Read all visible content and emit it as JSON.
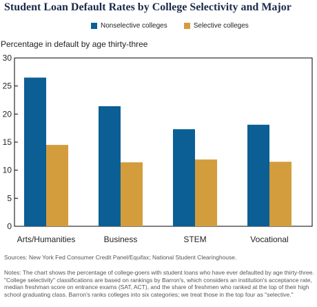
{
  "chart_data": {
    "type": "bar",
    "title": "Student Loan Default Rates by College Selectivity and Major",
    "ylabel": "Percentage in default by age thirty-three",
    "xlabel": "",
    "categories": [
      "Arts/Humanities",
      "Business",
      "STEM",
      "Vocational"
    ],
    "series": [
      {
        "name": "Nonselective colleges",
        "values": [
          26.5,
          21.4,
          17.3,
          18.1
        ],
        "color": "#0b5f94"
      },
      {
        "name": "Selective colleges",
        "values": [
          14.5,
          11.4,
          11.9,
          11.5
        ],
        "color": "#d39d3e"
      }
    ],
    "ylim": [
      0,
      30
    ],
    "yticks": [
      "0",
      "5",
      "10",
      "15",
      "20",
      "25",
      "30"
    ],
    "grid": false,
    "legend_position": "top"
  },
  "footer": {
    "sources": "Sources: New York Fed Consumer Credit Panel/Equifax; National Student Clearinghouse.",
    "notes": "Notes: The chart shows the percentage of college-goers with student loans who have ever defaulted by age thirty-three. \"College selectivity\" classifications are based on rankings by Barron's, which considers an institution's acceptance rate, median freshman score on entrance exams (SAT, ACT), and the share of freshmen who ranked at the top of their high school graduating class. Barron's ranks colleges into six categories; we treat those in the top four as \"selective.\""
  }
}
